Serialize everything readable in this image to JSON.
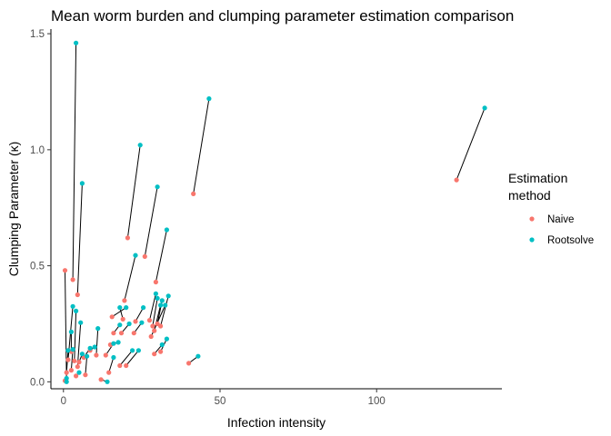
{
  "chart_data": {
    "type": "scatter",
    "title": "Mean worm burden and clumping parameter estimation comparison",
    "xlabel": "Infection intensity",
    "ylabel": "Clumping Parameter (κ)",
    "xlim": [
      -4,
      140
    ],
    "ylim": [
      -0.03,
      1.52
    ],
    "x_ticks": [
      0,
      50,
      100
    ],
    "x_tick_labels": [
      "0",
      "50",
      "100"
    ],
    "y_ticks": [
      0.0,
      0.5,
      1.0,
      1.5
    ],
    "y_tick_labels": [
      "0.0",
      "0.5",
      "1.0",
      "1.5"
    ],
    "grid": false,
    "legend": {
      "title_lines": [
        "Estimation",
        "method"
      ],
      "placement": "right"
    },
    "series": [
      {
        "name": "Naive",
        "color": "#F8766D",
        "points": [
          [
            125.5,
            0.87
          ],
          [
            41.5,
            0.81
          ],
          [
            20.5,
            0.62
          ],
          [
            26.0,
            0.54
          ],
          [
            29.5,
            0.43
          ],
          [
            4.5,
            0.375
          ],
          [
            0.5,
            0.48
          ],
          [
            3.0,
            0.44
          ],
          [
            19.5,
            0.35
          ],
          [
            15.5,
            0.28
          ],
          [
            19.0,
            0.27
          ],
          [
            23.0,
            0.26
          ],
          [
            27.5,
            0.265
          ],
          [
            28.5,
            0.24
          ],
          [
            29.0,
            0.22
          ],
          [
            30.0,
            0.25
          ],
          [
            31.0,
            0.24
          ],
          [
            28.0,
            0.195
          ],
          [
            16.0,
            0.21
          ],
          [
            18.5,
            0.21
          ],
          [
            22.5,
            0.21
          ],
          [
            15.0,
            0.16
          ],
          [
            13.5,
            0.115
          ],
          [
            10.5,
            0.115
          ],
          [
            8.5,
            0.135
          ],
          [
            6.5,
            0.105
          ],
          [
            5.0,
            0.085
          ],
          [
            2.5,
            0.13
          ],
          [
            3.5,
            0.09
          ],
          [
            1.5,
            0.095
          ],
          [
            2.5,
            0.05
          ],
          [
            1.0,
            0.04
          ],
          [
            4.5,
            0.065
          ],
          [
            7.0,
            0.03
          ],
          [
            14.5,
            0.04
          ],
          [
            18.0,
            0.07
          ],
          [
            20.0,
            0.07
          ],
          [
            29.0,
            0.12
          ],
          [
            31.0,
            0.13
          ],
          [
            40.0,
            0.08
          ],
          [
            4.0,
            0.025
          ],
          [
            0.5,
            0.005
          ],
          [
            12.0,
            0.01
          ]
        ]
      },
      {
        "name": "Rootsolve",
        "color": "#00BFC4",
        "points": [
          [
            134.5,
            1.18
          ],
          [
            46.5,
            1.22
          ],
          [
            24.5,
            1.02
          ],
          [
            30.0,
            0.84
          ],
          [
            33.0,
            0.655
          ],
          [
            6.0,
            0.855
          ],
          [
            1.0,
            0.0
          ],
          [
            4.0,
            1.46
          ],
          [
            23.0,
            0.545
          ],
          [
            20.0,
            0.32
          ],
          [
            18.0,
            0.32
          ],
          [
            25.5,
            0.32
          ],
          [
            29.5,
            0.38
          ],
          [
            30.0,
            0.36
          ],
          [
            31.0,
            0.33
          ],
          [
            31.5,
            0.35
          ],
          [
            33.5,
            0.37
          ],
          [
            32.5,
            0.33
          ],
          [
            18.0,
            0.245
          ],
          [
            21.0,
            0.25
          ],
          [
            25.0,
            0.255
          ],
          [
            17.5,
            0.17
          ],
          [
            16.0,
            0.165
          ],
          [
            11.0,
            0.23
          ],
          [
            10.0,
            0.15
          ],
          [
            8.5,
            0.145
          ],
          [
            6.0,
            0.12
          ],
          [
            2.5,
            0.215
          ],
          [
            4.0,
            0.305
          ],
          [
            3.0,
            0.325
          ],
          [
            3.0,
            0.14
          ],
          [
            1.5,
            0.135
          ],
          [
            5.5,
            0.255
          ],
          [
            7.5,
            0.11
          ],
          [
            16.0,
            0.105
          ],
          [
            22.0,
            0.135
          ],
          [
            24.0,
            0.135
          ],
          [
            31.5,
            0.16
          ],
          [
            33.0,
            0.185
          ],
          [
            43.0,
            0.11
          ],
          [
            5.0,
            0.04
          ],
          [
            1.0,
            0.015
          ],
          [
            14.0,
            0.0
          ]
        ]
      }
    ]
  }
}
